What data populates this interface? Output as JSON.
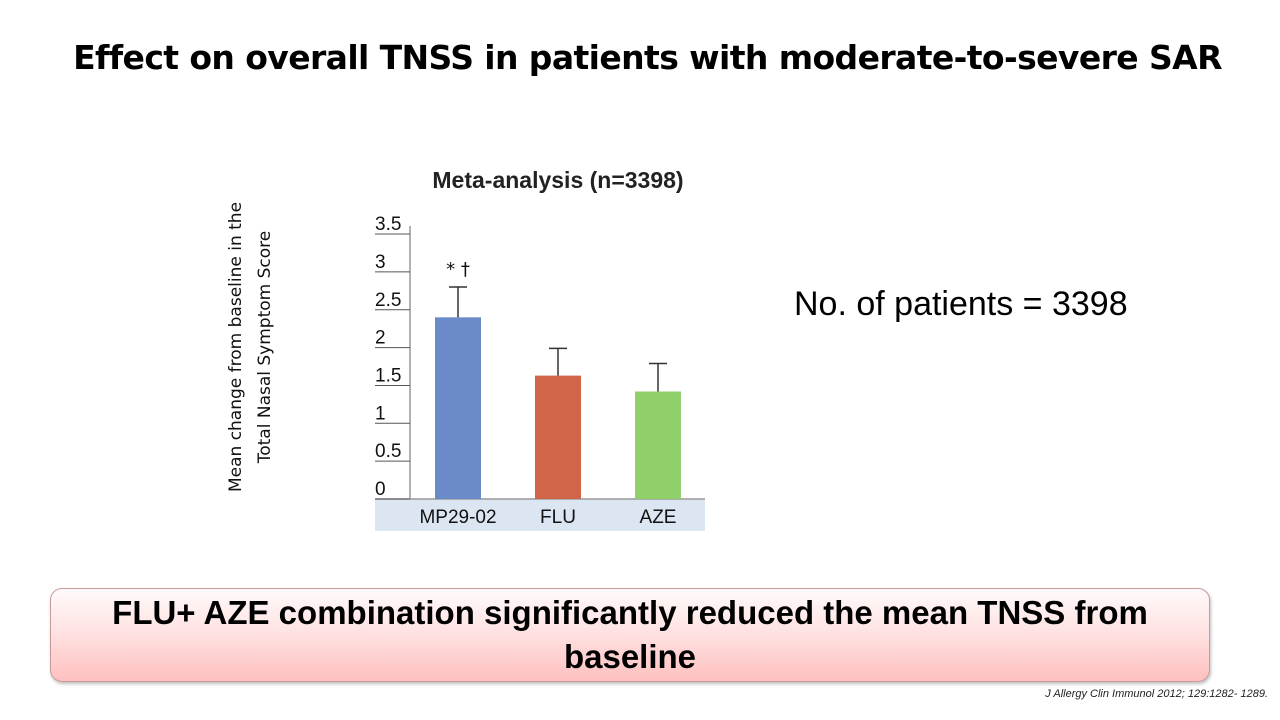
{
  "slide": {
    "title": "Effect on overall TNSS in patients with moderate-to-severe SAR",
    "y_axis_label": "Mean change from baseline in the Total Nasal Symptom Score",
    "patients_note": "No. of patients = 3398",
    "conclusion": "FLU+ AZE combination significantly reduced the mean TNSS from baseline",
    "citation": "J Allergy Clin Immunol 2012; 129:1282- 1289."
  },
  "chart_data": {
    "type": "bar",
    "title": "Meta-analysis (n=3398)",
    "categories": [
      "MP29-02",
      "FLU",
      "AZE"
    ],
    "values": [
      2.4,
      1.63,
      1.42
    ],
    "error_upper": [
      2.8,
      1.99,
      1.79
    ],
    "colors": [
      "#6b8ac8",
      "#d1654a",
      "#8fd06a"
    ],
    "annotations": [
      {
        "category": "MP29-02",
        "text": "* †"
      }
    ],
    "yticks": [
      "3.5",
      "3",
      "2.5",
      "2",
      "1.5",
      "1",
      "0.5",
      "0"
    ],
    "ylim": [
      0,
      3.5
    ],
    "grid": false,
    "legend": "none"
  }
}
